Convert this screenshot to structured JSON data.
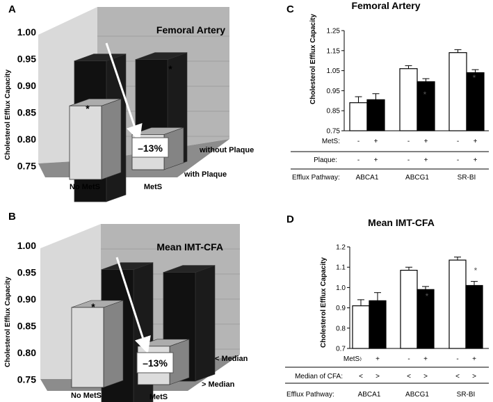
{
  "panels": {
    "A": "A",
    "B": "B",
    "C": "C",
    "D": "D"
  },
  "chart_data": [
    {
      "type": "bar",
      "panel": "A",
      "title": "Femoral Artery",
      "ylabel": "Cholesterol Efflux Capacity",
      "ylim": [
        0.75,
        1.0
      ],
      "yticks": [
        "1.00",
        "0.95",
        "0.90",
        "0.85",
        "0.80",
        "0.75"
      ],
      "categories": [
        "No MetS",
        "MetS"
      ],
      "series": [
        {
          "name": "without Plaque",
          "values": [
            0.97,
            0.92
          ],
          "color": "#111111"
        },
        {
          "name": "with Plaque",
          "values": [
            0.865,
            0.805
          ],
          "color": "#dcdcdc"
        }
      ],
      "annotation": "–13%",
      "stars": [
        "*",
        "*"
      ]
    },
    {
      "type": "bar",
      "panel": "B",
      "title": "Mean IMT-CFA",
      "ylabel": "Cholesterol  Efflux Capacity",
      "ylim": [
        0.75,
        1.0
      ],
      "yticks": [
        "1.00",
        "0.95",
        "0.90",
        "0.85",
        "0.80",
        "0.75"
      ],
      "categories": [
        "No MetS",
        "MetS"
      ],
      "series": [
        {
          "name": "< Median",
          "values": [
            0.97,
            0.92
          ],
          "color": "#111111"
        },
        {
          "name": "> Median",
          "values": [
            0.875,
            0.81
          ],
          "color": "#dcdcdc"
        }
      ],
      "annotation": "–13%",
      "stars": [
        "*"
      ]
    },
    {
      "type": "bar",
      "panel": "C",
      "title": "Femoral Artery",
      "ylabel": "Cholesterol Efflux Capacity",
      "ylim": [
        0.75,
        1.25
      ],
      "yticks": [
        "1.25",
        "1.15",
        "1.05",
        "0.95",
        "0.85",
        "0.75"
      ],
      "categories": [
        "ABCA1",
        "ABCG1",
        "SR-BI"
      ],
      "series": [
        {
          "values": [
            0.89,
            1.06,
            1.14
          ],
          "errors": [
            0.03,
            0.015,
            0.015
          ],
          "color": "#ffffff"
        },
        {
          "values": [
            0.905,
            0.995,
            1.04
          ],
          "errors": [
            0.03,
            0.015,
            0.015
          ],
          "color": "#000000"
        }
      ],
      "stars": [
        "*",
        "*"
      ],
      "table": {
        "row1_label": "MetS:",
        "row1": [
          "-",
          "+",
          "-",
          "+",
          "-",
          "+"
        ],
        "row2_label": "Plaque:",
        "row2": [
          "-",
          "+",
          "-",
          "+",
          "-",
          "+"
        ],
        "row3_label": "Efflux Pathway:"
      }
    },
    {
      "type": "bar",
      "panel": "D",
      "title": "Mean IMT-CFA",
      "ylabel": "Cholesterol Efflux Capacity",
      "ylim": [
        0.7,
        1.2
      ],
      "yticks": [
        "1.2",
        "1.1",
        "1.0",
        "0.9",
        "0.8",
        "0.7"
      ],
      "categories": [
        "ABCA1",
        "ABCG1",
        "SR-BI"
      ],
      "series": [
        {
          "values": [
            0.91,
            1.085,
            1.135
          ],
          "errors": [
            0.03,
            0.015,
            0.015
          ],
          "color": "#ffffff"
        },
        {
          "values": [
            0.935,
            0.99,
            1.01
          ],
          "errors": [
            0.04,
            0.015,
            0.02
          ],
          "color": "#000000"
        }
      ],
      "stars": [
        "*",
        "*"
      ],
      "table": {
        "row1_label": "MetS:",
        "row1": [
          "-",
          "+",
          "-",
          "+",
          "-",
          "+"
        ],
        "row2_label": "Median of CFA:",
        "row2": [
          "<",
          ">",
          "<",
          ">",
          "<",
          ">"
        ],
        "row3_label": "Efflux Pathway:"
      }
    }
  ]
}
